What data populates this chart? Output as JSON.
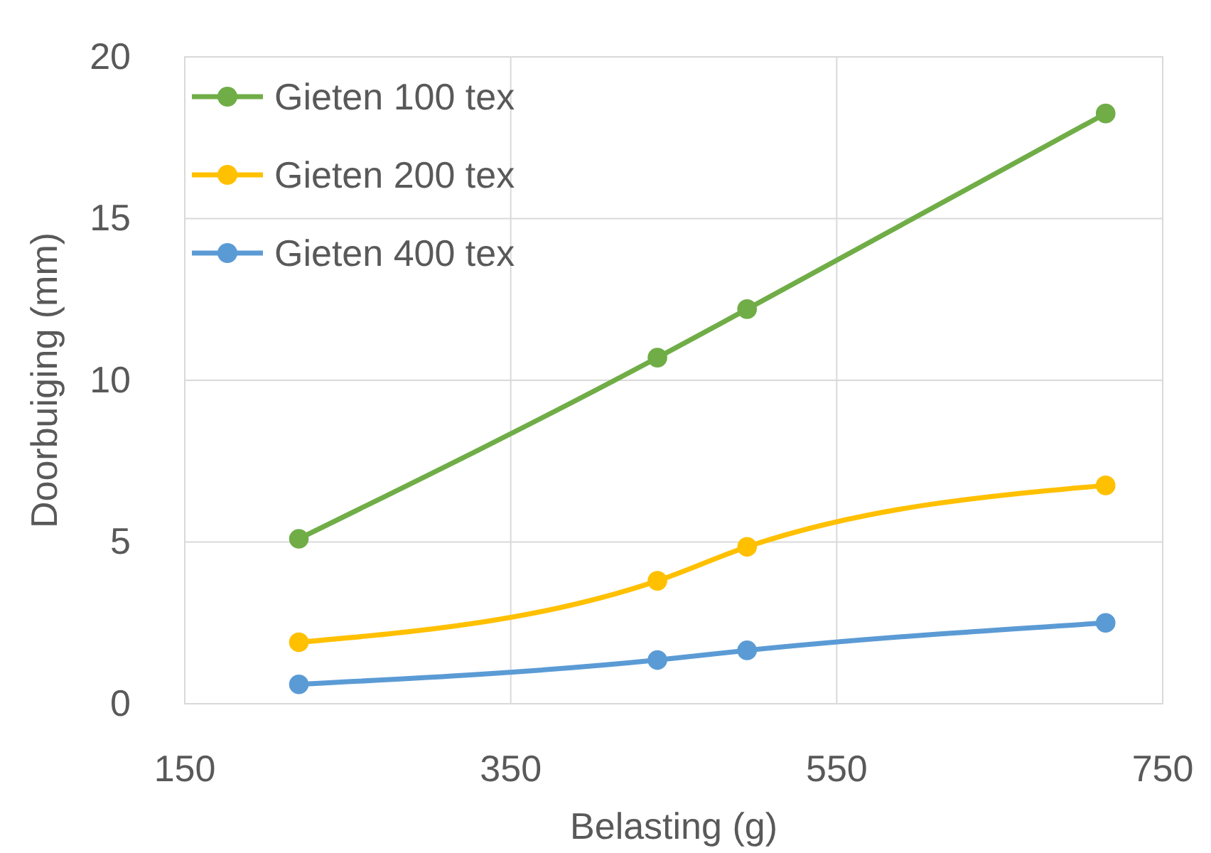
{
  "chart_data": {
    "type": "line",
    "xlabel": "Belasting (g)",
    "ylabel": "Doorbuiging (mm)",
    "x": [
      220,
      440,
      495,
      715
    ],
    "series": [
      {
        "name": "Gieten 100 tex",
        "color": "#70ad47",
        "values": [
          5.1,
          10.7,
          12.2,
          18.25
        ]
      },
      {
        "name": "Gieten 200 tex",
        "color": "#ffc000",
        "values": [
          1.9,
          3.8,
          4.85,
          6.75
        ]
      },
      {
        "name": "Gieten 400 tex",
        "color": "#5b9bd5",
        "values": [
          0.6,
          1.35,
          1.65,
          2.5
        ]
      }
    ],
    "xlim": [
      150,
      750
    ],
    "xticks": [
      150,
      350,
      550,
      750
    ],
    "ylim": [
      0,
      20
    ],
    "yticks": [
      0,
      5,
      10,
      15,
      20
    ],
    "grid": true,
    "legend": "top left",
    "marker": "circle",
    "line_style": "solid"
  }
}
